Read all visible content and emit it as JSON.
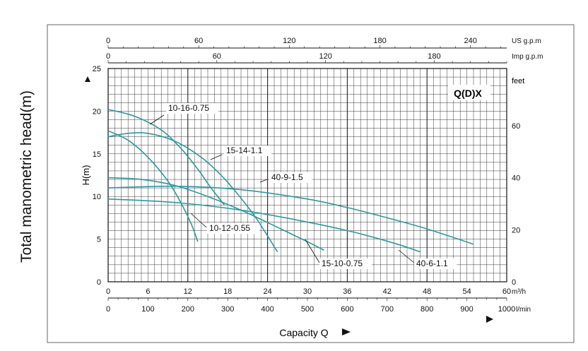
{
  "side_label": "Total manometric head(m)",
  "chart_data": {
    "type": "line",
    "title": "",
    "model_label": "Q(D)X",
    "xlabel": "Capacity Q",
    "ylabel": "H(m)",
    "right_axis_label": "feet",
    "xlim": [
      0,
      60
    ],
    "ylim": [
      0,
      25
    ],
    "x_unit": "m³/h",
    "x_ticks": [
      0,
      6,
      12,
      18,
      24,
      30,
      36,
      42,
      48,
      54,
      60
    ],
    "y_ticks": [
      0,
      5,
      10,
      15,
      20,
      25
    ],
    "secondary_axes": [
      {
        "name": "US g.p.m",
        "position": "top",
        "ticks": [
          0,
          60,
          120,
          180,
          240
        ]
      },
      {
        "name": "Imp g.p.m",
        "position": "top",
        "ticks": [
          0,
          60,
          120,
          180
        ]
      },
      {
        "name": "l/min",
        "position": "bottom",
        "ticks": [
          0,
          100,
          200,
          300,
          400,
          500,
          600,
          700,
          800,
          900,
          1000
        ]
      },
      {
        "name": "feet",
        "position": "right",
        "ticks": [
          0,
          20,
          40,
          60
        ]
      }
    ],
    "grid": true,
    "series": [
      {
        "name": "10-16-0.75",
        "x": [
          0,
          4,
          8,
          11,
          13.5,
          15.5,
          17.5
        ],
        "y": [
          20.2,
          19.4,
          17.8,
          15.6,
          13.2,
          11.0,
          9.0
        ]
      },
      {
        "name": "10-12-0.55",
        "x": [
          0,
          3,
          6,
          9,
          11,
          12.5,
          13.5
        ],
        "y": [
          17.7,
          16.6,
          14.6,
          11.8,
          9.2,
          6.8,
          4.7
        ]
      },
      {
        "name": "15-14-1.1",
        "x": [
          0,
          3,
          6,
          10,
          14,
          17,
          20,
          22.5,
          25.5
        ],
        "y": [
          17.0,
          17.4,
          17.4,
          16.5,
          14.6,
          12.5,
          9.8,
          7.2,
          3.5
        ]
      },
      {
        "name": "15-10-0.75",
        "x": [
          0,
          5,
          10,
          15,
          20,
          26,
          30,
          32.5
        ],
        "y": [
          12.2,
          12.0,
          11.3,
          10.0,
          8.4,
          6.2,
          4.7,
          3.7
        ]
      },
      {
        "name": "40-9-1.5",
        "x": [
          0,
          10,
          20,
          30,
          36,
          42,
          48,
          55
        ],
        "y": [
          11.0,
          11.2,
          10.8,
          9.7,
          8.7,
          7.5,
          6.2,
          4.4
        ]
      },
      {
        "name": "40-6-1.1",
        "x": [
          0,
          10,
          20,
          30,
          36,
          40,
          44,
          47
        ],
        "y": [
          9.7,
          9.3,
          8.4,
          7.0,
          6.0,
          5.2,
          4.3,
          3.5
        ]
      }
    ]
  }
}
